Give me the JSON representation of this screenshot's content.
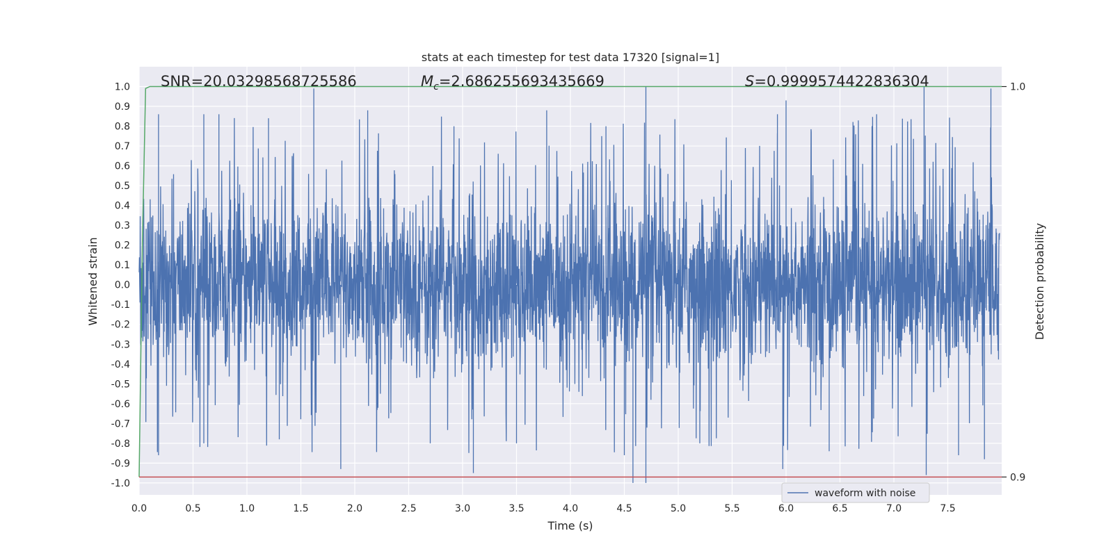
{
  "chart_data": {
    "type": "line",
    "title": "stats at each timestep for test data 17320 [signal=1]",
    "xlabel": "Time (s)",
    "ylabel": "Whitened strain",
    "y2label": "Detection probability",
    "xlim": [
      0.0,
      8.0
    ],
    "ylim": [
      -1.06,
      1.1
    ],
    "y2lim": [
      0.9,
      1.0
    ],
    "grid": true,
    "x_ticks": [
      "0.0",
      "0.5",
      "1.0",
      "1.5",
      "2.0",
      "2.5",
      "3.0",
      "3.5",
      "4.0",
      "4.5",
      "5.0",
      "5.5",
      "6.0",
      "6.5",
      "7.0",
      "7.5"
    ],
    "x_tick_values": [
      0,
      0.5,
      1,
      1.5,
      2,
      2.5,
      3,
      3.5,
      4,
      4.5,
      5,
      5.5,
      6,
      6.5,
      7,
      7.5
    ],
    "y_ticks": [
      "1.0",
      "0.9",
      "0.8",
      "0.7",
      "0.6",
      "0.5",
      "0.4",
      "0.3",
      "0.2",
      "0.1",
      "0.0",
      "-0.1",
      "-0.2",
      "-0.3",
      "-0.4",
      "-0.5",
      "-0.6",
      "-0.7",
      "-0.8",
      "-0.9",
      "-1.0"
    ],
    "y_tick_values": [
      1.0,
      0.9,
      0.8,
      0.7,
      0.6,
      0.5,
      0.4,
      0.3,
      0.2,
      0.1,
      0.0,
      -0.1,
      -0.2,
      -0.3,
      -0.4,
      -0.5,
      -0.6,
      -0.7,
      -0.8,
      -0.9,
      -1.0
    ],
    "y2_ticks": [
      "1.0",
      "0.9"
    ],
    "y2_tick_values": [
      1.0,
      0.9
    ],
    "annotations": {
      "snr": "SNR=20.03298568725586",
      "mc_symbol": "M",
      "mc_sub": "c",
      "mc_value": "=2.686255693435669",
      "s_symbol": "S",
      "s_value": "=0.9999574422836304"
    },
    "legend": {
      "placement": "lower-right",
      "entries": [
        "waveform with noise"
      ]
    },
    "series": [
      {
        "name": "waveform with noise",
        "color": "#4c72b0",
        "description": "dense noisy strain, mostly within ±0.45 with spikes to ±1.0"
      },
      {
        "color": "#55a868",
        "axis": "y2",
        "x": [
          0.0,
          0.03,
          0.06,
          0.1,
          8.0
        ],
        "values": [
          0.9,
          0.96,
          0.9995,
          1.0,
          1.0
        ]
      },
      {
        "color": "#c44e52",
        "axis": "y2",
        "x": [
          0.0,
          8.0
        ],
        "values": [
          0.9,
          0.9
        ]
      }
    ],
    "spikes": [
      {
        "x": 1.62,
        "y": 0.99
      },
      {
        "x": 4.7,
        "y": 1.0
      },
      {
        "x": 7.28,
        "y": 1.0
      },
      {
        "x": 7.9,
        "y": 0.99
      },
      {
        "x": 0.74,
        "y": 0.86
      },
      {
        "x": 0.6,
        "y": 0.86
      },
      {
        "x": 1.2,
        "y": 0.84
      },
      {
        "x": 2.12,
        "y": 0.88
      },
      {
        "x": 3.78,
        "y": 0.88
      },
      {
        "x": 5.92,
        "y": 0.86
      },
      {
        "x": 6.0,
        "y": 0.93
      },
      {
        "x": 6.84,
        "y": 0.86
      },
      {
        "x": 2.92,
        "y": 0.8
      },
      {
        "x": 4.33,
        "y": 0.8
      },
      {
        "x": 0.18,
        "y": 0.86
      },
      {
        "x": 4.58,
        "y": -1.0
      },
      {
        "x": 4.7,
        "y": -1.0
      },
      {
        "x": 7.3,
        "y": -0.96
      },
      {
        "x": 3.1,
        "y": -0.95
      },
      {
        "x": 1.87,
        "y": -0.93
      },
      {
        "x": 5.97,
        "y": -0.93
      },
      {
        "x": 4.5,
        "y": -0.86
      },
      {
        "x": 6.4,
        "y": -0.84
      },
      {
        "x": 0.6,
        "y": -0.8
      },
      {
        "x": 2.7,
        "y": -0.8
      },
      {
        "x": 7.6,
        "y": -0.86
      },
      {
        "x": 7.84,
        "y": -0.88
      },
      {
        "x": 0.18,
        "y": -0.86
      },
      {
        "x": 1.3,
        "y": -0.78
      },
      {
        "x": 5.2,
        "y": -0.8
      },
      {
        "x": 3.5,
        "y": -0.8
      }
    ]
  }
}
